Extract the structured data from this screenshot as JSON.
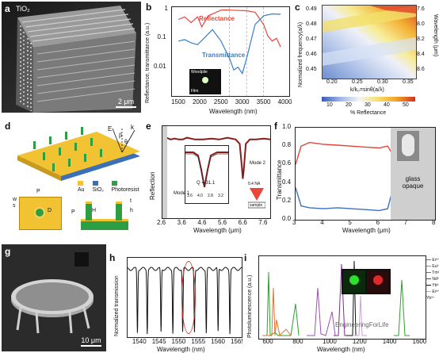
{
  "panels": {
    "a": {
      "label": "a",
      "material": "TiO₂",
      "scale": "2 μm"
    },
    "b": {
      "label": "b",
      "ylabel": "Reflectance, transmittance (a.u.)",
      "xlabel": "Wavelength (nm)",
      "xticks": [
        "1500",
        "2000",
        "2500",
        "3000",
        "3500",
        "4000"
      ],
      "yticks": [
        "1",
        "0.1",
        "0.01"
      ],
      "legend_reflectance": "Reflectance",
      "legend_transmittance": "Transmittance",
      "inset_top": "Woodpile",
      "inset_bottom": "Film"
    },
    "c": {
      "label": "c",
      "ylabel": "Normalized frequency(a/λ)",
      "ylabel_right": "Wavelength (μm)",
      "xlabel": "k/k₀=sinθ(a/λ)",
      "xticks": [
        "0.20",
        "0.25",
        "0.30",
        "0.35"
      ],
      "yticks": [
        "0.49",
        "0.48",
        "0.47",
        "0.46",
        "0.45"
      ],
      "yticks_right": [
        "7.6",
        "8.0",
        "8.2",
        "8.4",
        "8.6"
      ],
      "colorbar_ticks": [
        "10",
        "20",
        "30",
        "40",
        "50"
      ],
      "colorbar_label": "% Reflectance"
    },
    "d": {
      "label": "d",
      "legend": [
        "Au",
        "SiO₂",
        "Photoresist"
      ],
      "legend_colors": [
        "#f1c232",
        "#3b6fb6",
        "#2e9e44"
      ],
      "symbols": {
        "P": "P",
        "D": "D",
        "w": "w",
        "s": "s",
        "H": "H",
        "h": "h",
        "t": "t",
        "E": "E",
        "k": "k",
        "beta": "β",
        "theta": "θ"
      }
    },
    "e": {
      "label": "e",
      "ylabel": "Reflection",
      "xlabel": "Wavelength (μm)",
      "xticks": [
        "2.6",
        "3.6",
        "4.6",
        "5.6",
        "6.6",
        "7.6"
      ],
      "inset_xticks": [
        "3.6",
        "4.0",
        "2.8",
        "3.2"
      ],
      "mode1": "Mode 1",
      "mode2": "Mode 2",
      "q": "Q = 31.1",
      "na": "0.4 NA",
      "sample": "sample"
    },
    "f": {
      "label": "f",
      "ylabel": "Transmittance",
      "xlabel": "Wavelength (μm)",
      "xticks": [
        "3",
        "4",
        "5",
        "6",
        "7",
        "8"
      ],
      "yticks": [
        "1.0",
        "0.8",
        "0.6",
        "0.4",
        "0.2",
        "0.0"
      ],
      "annotation": "glass opaque"
    },
    "g": {
      "label": "g",
      "scale": "10 μm"
    },
    "h": {
      "label": "h",
      "ylabel": "Normalized transmission",
      "xlabel": "Wavelength (nm)",
      "xticks": [
        "1540",
        "1545",
        "1550",
        "1555",
        "1560",
        "1565"
      ]
    },
    "i": {
      "label": "i",
      "ylabel": "Photoluminescence (a.u.)",
      "xlabel": "Wavelength (nm)",
      "xticks": [
        "600",
        "800",
        "1000",
        "1200",
        "1400",
        "1600"
      ],
      "legend": [
        "Er³⁺",
        "Eu³⁺",
        "Tm³⁺",
        "Nd³⁺",
        "Yb³⁺",
        "Er³⁺/\nYb³⁺"
      ],
      "legend_colors": [
        "#2ca02c",
        "#e8702a",
        "#9e4fb5",
        "#7b2b8c",
        "#111111",
        "#c8a2d6"
      ],
      "watermark": "EngineeringForLife"
    }
  },
  "chart_data": [
    {
      "panel": "b",
      "type": "line",
      "title": "",
      "xlabel": "Wavelength (nm)",
      "ylabel": "Reflectance, transmittance (a.u.)",
      "xlim": [
        1350,
        4100
      ],
      "ylim": [
        0.001,
        1.2
      ],
      "yscale": "log",
      "series": [
        {
          "name": "Reflectance",
          "color": "#e8473a",
          "x": [
            1500,
            1650,
            1800,
            1950,
            2050,
            2200,
            2350,
            2500,
            2600,
            2700,
            2900,
            3100,
            3300,
            3500,
            3600,
            3700,
            3800,
            3900
          ],
          "y": [
            0.45,
            0.55,
            0.35,
            0.55,
            0.25,
            0.6,
            0.75,
            0.95,
            0.96,
            0.95,
            0.92,
            0.9,
            0.8,
            0.3,
            0.12,
            0.08,
            0.1,
            0.05
          ]
        },
        {
          "name": "Transmittance",
          "color": "#3b7dc9",
          "x": [
            1500,
            1650,
            1800,
            1950,
            2100,
            2300,
            2500,
            2700,
            2800,
            2900,
            3000,
            3100,
            3300,
            3500,
            3700,
            3900
          ],
          "y": [
            0.08,
            0.09,
            0.07,
            0.06,
            0.1,
            0.2,
            0.08,
            0.02,
            0.008,
            0.01,
            0.006,
            0.02,
            0.3,
            0.6,
            0.7,
            0.68
          ]
        }
      ]
    },
    {
      "panel": "e",
      "type": "line",
      "xlabel": "Wavelength (μm)",
      "ylabel": "Reflection",
      "xlim": [
        2.6,
        7.9
      ],
      "series": [
        {
          "name": "",
          "color": "#8b1a1a",
          "x": [
            2.6,
            2.8,
            3.0,
            3.2,
            3.4,
            3.6,
            3.8,
            4.0,
            4.2,
            4.6,
            5.0,
            5.4,
            5.8,
            6.2,
            6.4,
            6.5,
            6.55,
            6.6,
            6.7,
            6.9,
            7.2,
            7.6,
            7.9
          ],
          "y": [
            0.9,
            0.92,
            0.9,
            0.91,
            0.9,
            0.9,
            0.92,
            0.91,
            0.9,
            0.9,
            0.91,
            0.9,
            0.92,
            0.9,
            0.85,
            0.6,
            0.45,
            0.55,
            0.85,
            0.9,
            0.9,
            0.91,
            0.9
          ]
        }
      ]
    },
    {
      "panel": "f",
      "type": "line",
      "xlabel": "Wavelength (μm)",
      "ylabel": "Transmittance",
      "xlim": [
        3,
        8
      ],
      "ylim": [
        0,
        1
      ],
      "series": [
        {
          "name": "",
          "color": "#e0443a",
          "x": [
            3,
            3.2,
            3.5,
            4,
            4.5,
            5,
            5.5,
            6,
            6.3,
            6.5
          ],
          "y": [
            0.6,
            0.8,
            0.84,
            0.82,
            0.81,
            0.8,
            0.79,
            0.78,
            0.8,
            0.7
          ]
        },
        {
          "name": "",
          "color": "#3b6fc4",
          "x": [
            3,
            3.2,
            3.5,
            4,
            4.5,
            5,
            5.5,
            6,
            6.3,
            6.5
          ],
          "y": [
            0.35,
            0.15,
            0.13,
            0.12,
            0.13,
            0.12,
            0.11,
            0.1,
            0.12,
            0.35
          ]
        }
      ]
    },
    {
      "panel": "h",
      "type": "line",
      "xlabel": "Wavelength (nm)",
      "ylabel": "Normalized transmission",
      "xlim": [
        1537,
        1566
      ],
      "series": [
        {
          "name": "",
          "color": "#111111",
          "dips": [
            1539.5,
            1542,
            1545.5,
            1548.5,
            1551,
            1554,
            1557,
            1560,
            1563
          ]
        }
      ]
    }
  ]
}
